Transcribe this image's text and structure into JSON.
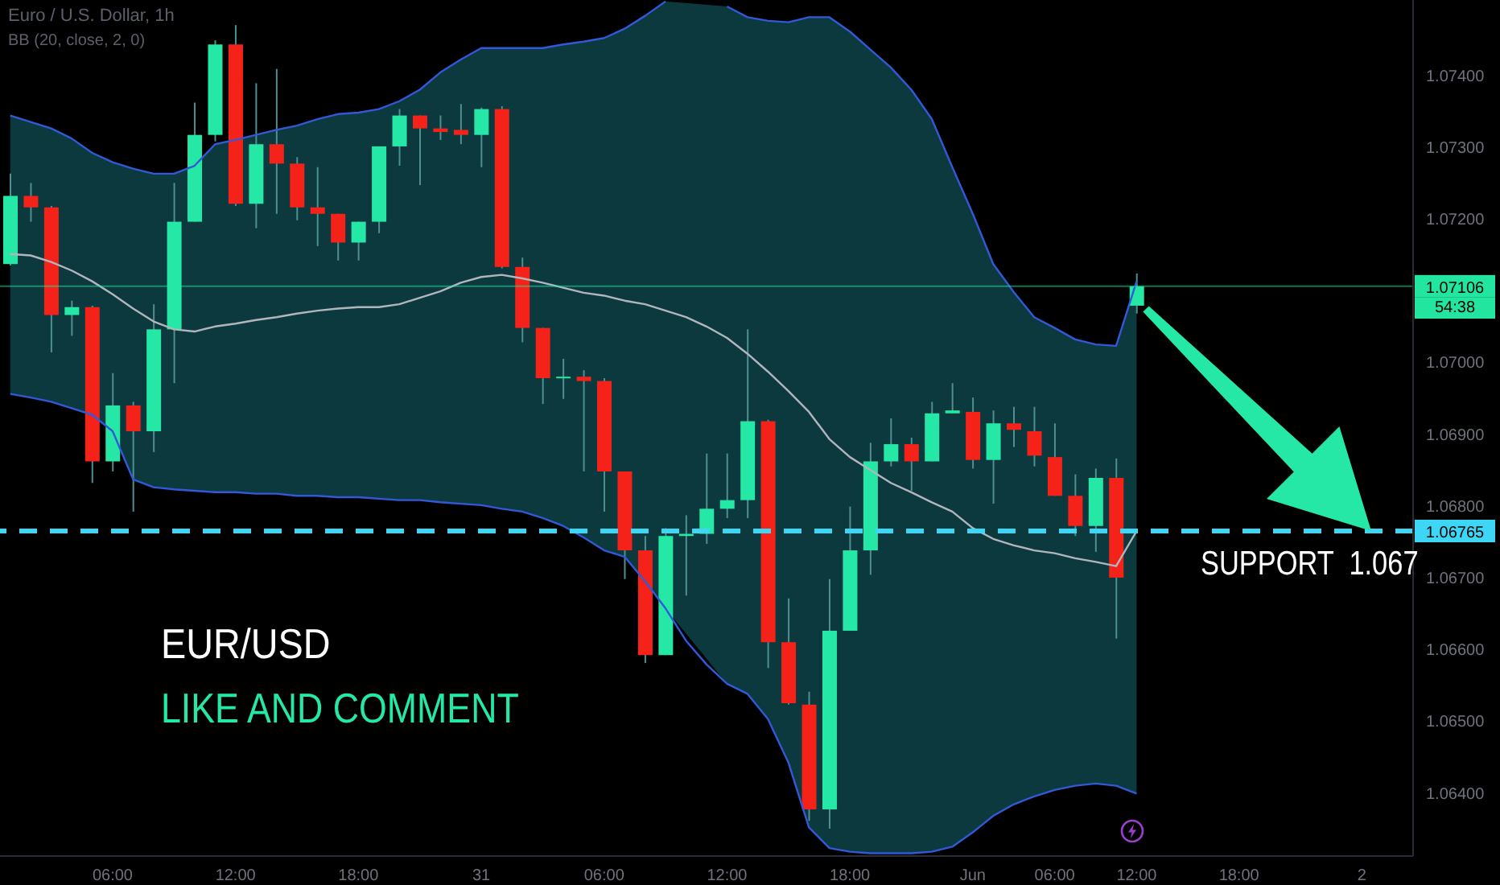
{
  "chart_data": {
    "type": "candlestick",
    "title": "Euro / U.S. Dollar, 1h",
    "subtitle": "BB (20, close, 2, 0)",
    "categories": [
      null,
      null,
      null,
      null,
      null,
      "06:00",
      null,
      null,
      null,
      null,
      null,
      "12:00",
      null,
      null,
      null,
      null,
      null,
      "18:00",
      null,
      null,
      null,
      null,
      null,
      "31",
      null,
      null,
      null,
      null,
      null,
      "06:00",
      null,
      null,
      null,
      null,
      null,
      "12:00",
      null,
      null,
      null,
      null,
      null,
      "18:00",
      null,
      null,
      null,
      null,
      null,
      "Jun",
      null,
      null,
      null,
      "06:00",
      null,
      null,
      null,
      "12:00",
      null,
      null,
      null,
      null,
      "18:00",
      null,
      null,
      null,
      null,
      null,
      "2",
      null,
      null
    ],
    "ohlc": [
      [
        1.07137,
        1.07263,
        1.07135,
        1.07232
      ],
      [
        1.07232,
        1.0725,
        1.07196,
        1.07216
      ],
      [
        1.07216,
        1.07218,
        1.07014,
        1.07066
      ],
      [
        1.07066,
        1.07086,
        1.07037,
        1.07077
      ],
      [
        1.07077,
        1.07079,
        1.06832,
        1.06862
      ],
      [
        1.06862,
        1.06985,
        1.06848,
        1.0694
      ],
      [
        1.0694,
        1.06945,
        1.06792,
        1.06904
      ],
      [
        1.06904,
        1.07081,
        1.06875,
        1.07046
      ],
      [
        1.07046,
        1.0725,
        1.06971,
        1.07196
      ],
      [
        1.07196,
        1.07362,
        1.07196,
        1.07317
      ],
      [
        1.07317,
        1.07449,
        1.07308,
        1.07443
      ],
      [
        1.07443,
        1.0747,
        1.07218,
        1.07221
      ],
      [
        1.07221,
        1.07389,
        1.07187,
        1.07304
      ],
      [
        1.07304,
        1.07409,
        1.07207,
        1.07277
      ],
      [
        1.07277,
        1.07286,
        1.07198,
        1.07216
      ],
      [
        1.07216,
        1.07272,
        1.07162,
        1.07207
      ],
      [
        1.07207,
        1.07207,
        1.07142,
        1.07167
      ],
      [
        1.07167,
        1.07196,
        1.07142,
        1.07196
      ],
      [
        1.07196,
        1.07301,
        1.0718,
        1.07301
      ],
      [
        1.07301,
        1.07353,
        1.07274,
        1.07344
      ],
      [
        1.07344,
        1.07344,
        1.07247,
        1.07326
      ],
      [
        1.07326,
        1.07344,
        1.0731,
        1.07321
      ],
      [
        1.07324,
        1.0736,
        1.07304,
        1.07317
      ],
      [
        1.07317,
        1.07355,
        1.07272,
        1.07353
      ],
      [
        1.07353,
        1.07357,
        1.07131,
        1.07133
      ],
      [
        1.07133,
        1.07146,
        1.07028,
        1.07048
      ],
      [
        1.07048,
        1.07048,
        1.06942,
        1.06978
      ],
      [
        1.06978,
        1.07005,
        1.06949,
        1.0698
      ],
      [
        1.0698,
        1.06989,
        1.06848,
        1.06974
      ],
      [
        1.06974,
        1.06978,
        1.06792,
        1.06848
      ],
      [
        1.06848,
        1.06848,
        1.06698,
        1.06738
      ],
      [
        1.06738,
        1.06758,
        1.06581,
        1.06592
      ],
      [
        1.06592,
        1.06769,
        1.06592,
        1.06758
      ],
      [
        1.06758,
        1.06787,
        1.06675,
        1.06761
      ],
      [
        1.06761,
        1.06873,
        1.06747,
        1.06796
      ],
      [
        1.06796,
        1.06873,
        1.06783,
        1.06808
      ],
      [
        1.06808,
        1.07046,
        1.06783,
        1.06918
      ],
      [
        1.06918,
        1.0692,
        1.06574,
        1.0661
      ],
      [
        1.0661,
        1.06671,
        1.06523,
        1.06525
      ],
      [
        1.06523,
        1.06541,
        1.06361,
        1.06377
      ],
      [
        1.06377,
        1.06698,
        1.0635,
        1.06626
      ],
      [
        1.06626,
        1.06799,
        1.06626,
        1.06738
      ],
      [
        1.06738,
        1.06888,
        1.06704,
        1.06862
      ],
      [
        1.06862,
        1.06922,
        1.06855,
        1.06886
      ],
      [
        1.06886,
        1.06895,
        1.06821,
        1.06862
      ],
      [
        1.06862,
        1.06945,
        1.06862,
        1.06929
      ],
      [
        1.06929,
        1.06971,
        1.06929,
        1.06933
      ],
      [
        1.06931,
        1.06951,
        1.06852,
        1.06864
      ],
      [
        1.06864,
        1.06933,
        1.06803,
        1.06915
      ],
      [
        1.06915,
        1.06938,
        1.06882,
        1.06906
      ],
      [
        1.06904,
        1.06938,
        1.06855,
        1.0687
      ],
      [
        1.06868,
        1.06915,
        1.06814,
        1.06814
      ],
      [
        1.06814,
        1.06844,
        1.06758,
        1.06772
      ],
      [
        1.06772,
        1.06852,
        1.06736,
        1.06839
      ],
      [
        1.06839,
        1.06866,
        1.06615,
        1.067
      ],
      [
        1.07079,
        1.07124,
        1.07068,
        1.07106
      ],
      null,
      null,
      null,
      null,
      null,
      null,
      null,
      null,
      null,
      null,
      null,
      null,
      null
    ],
    "series": [
      {
        "type": "line",
        "color": "#b2b5be",
        "values": [
          1.07151,
          1.07149,
          1.0714,
          1.07128,
          1.07113,
          1.07095,
          1.07075,
          1.07057,
          1.07046,
          1.07043,
          1.0705,
          1.07054,
          1.07059,
          1.07063,
          1.07068,
          1.07072,
          1.07075,
          1.07077,
          1.07077,
          1.07081,
          1.0709,
          1.07099,
          1.07111,
          1.07119,
          1.07122,
          1.07117,
          1.07111,
          1.07104,
          1.07097,
          1.07093,
          1.07086,
          1.07081,
          1.07072,
          1.07063,
          1.0705,
          1.07034,
          1.07012,
          1.06987,
          1.0696,
          1.06931,
          1.06893,
          1.06868,
          1.0685,
          1.06832,
          1.06819,
          1.06805,
          1.06792,
          1.06769,
          1.06754,
          1.06745,
          1.06738,
          1.06734,
          1.06727,
          1.06722,
          1.06716,
          1.06765,
          null,
          null,
          null,
          null,
          null,
          null,
          null,
          null,
          null,
          null,
          null,
          null,
          null
        ],
        "lower": [
          1.06956,
          1.06951,
          1.06945,
          1.06936,
          1.06927,
          1.06904,
          1.06837,
          1.06826,
          1.06823,
          1.06821,
          1.06819,
          1.06819,
          1.06817,
          1.06817,
          1.06814,
          1.06814,
          1.06812,
          1.06812,
          1.0681,
          1.06808,
          1.06808,
          1.06805,
          1.06803,
          1.06801,
          1.06796,
          1.06792,
          1.06783,
          1.06772,
          1.06756,
          1.06738,
          1.06729,
          1.06695,
          1.06657,
          null,
          null,
          1.06552,
          1.06538,
          1.06503,
          1.06442,
          1.06352,
          1.06323,
          1.06318,
          1.06316,
          1.06316,
          1.06316,
          1.06318,
          1.06325,
          1.06345,
          1.06368,
          1.06384,
          1.06395,
          1.06404,
          1.0641,
          1.06413,
          1.0641,
          1.06399,
          null,
          null,
          null,
          null,
          null,
          null,
          null,
          null,
          null,
          null,
          null,
          null,
          null
        ],
        "upper": [
          1.07344,
          1.07335,
          1.07326,
          1.07312,
          1.07292,
          1.07279,
          1.0727,
          1.07263,
          1.07263,
          1.07274,
          1.07304,
          1.0731,
          1.07317,
          1.07324,
          1.0733,
          1.07339,
          1.07346,
          1.07348,
          1.07353,
          1.07364,
          1.0738,
          1.07404,
          1.07422,
          1.07438,
          1.07438,
          1.07438,
          1.07438,
          1.07443,
          1.07447,
          1.07452,
          1.07465,
          1.07483,
          1.07503,
          null,
          null,
          1.07496,
          1.07481,
          1.07476,
          1.07474,
          1.07481,
          1.07481,
          1.07461,
          1.07436,
          1.07411,
          1.0738,
          1.07339,
          1.07272,
          1.07207,
          1.07137,
          1.07098,
          1.07063,
          1.07048,
          1.07032,
          1.07025,
          1.07023,
          1.07113,
          null,
          null,
          null,
          null,
          null,
          null,
          null,
          null,
          null,
          null,
          null,
          null,
          null
        ]
      },
      {
        "type": "line",
        "color": "#3159d8",
        "values": [
          1.07344,
          1.07335,
          1.07326,
          1.07312,
          1.07292,
          1.07279,
          1.0727,
          1.07263,
          1.07263,
          1.07274,
          1.07304,
          1.0731,
          1.07317,
          1.07324,
          1.0733,
          1.07339,
          1.07346,
          1.07348,
          1.07353,
          1.07364,
          1.0738,
          1.07404,
          1.07422,
          1.07438,
          1.07438,
          1.07438,
          1.07438,
          1.07443,
          1.07447,
          1.07452,
          1.07465,
          1.07483,
          1.07503,
          null,
          null,
          1.07496,
          1.07481,
          1.07476,
          1.07474,
          1.07481,
          1.07481,
          1.07461,
          1.07436,
          1.07411,
          1.0738,
          1.07339,
          1.07272,
          1.07207,
          1.07137,
          1.07098,
          1.07063,
          1.07048,
          1.07032,
          1.07025,
          1.07023,
          1.07113,
          null,
          null,
          null,
          null,
          null,
          null,
          null,
          null,
          null,
          null,
          null,
          null,
          null
        ]
      },
      {
        "type": "line",
        "color": "#3159d8",
        "values": [
          1.06956,
          1.06951,
          1.06945,
          1.06936,
          1.06927,
          1.06904,
          1.06837,
          1.06826,
          1.06823,
          1.06821,
          1.06819,
          1.06819,
          1.06817,
          1.06817,
          1.06814,
          1.06814,
          1.06812,
          1.06812,
          1.0681,
          1.06808,
          1.06808,
          1.06805,
          1.06803,
          1.06801,
          1.06796,
          1.06792,
          1.06783,
          1.06772,
          1.06756,
          1.06738,
          1.06729,
          1.06695,
          1.06657,
          1.06612,
          1.06579,
          1.06552,
          1.06538,
          1.06503,
          1.06442,
          1.06352,
          1.06323,
          1.06318,
          1.06316,
          1.06316,
          1.06316,
          1.06318,
          1.06325,
          1.06345,
          1.06368,
          1.06384,
          1.06395,
          1.06404,
          1.0641,
          1.06413,
          1.0641,
          1.06399,
          null,
          null,
          null,
          null,
          null,
          null,
          null,
          null,
          null,
          null,
          null,
          null,
          null
        ]
      }
    ],
    "ylim": [
      1.06312,
      1.07505
    ],
    "yticks": [
      {
        "value": 1.064,
        "label": "1.06400"
      },
      {
        "value": 1.065,
        "label": "1.06500"
      },
      {
        "value": 1.066,
        "label": "1.06600"
      },
      {
        "value": 1.067,
        "label": "1.06700"
      },
      {
        "value": 1.068,
        "label": "1.06800"
      },
      {
        "value": 1.069,
        "label": "1.06900"
      },
      {
        "value": 1.07,
        "label": "1.07000"
      },
      {
        "value": 1.072,
        "label": "1.07200"
      },
      {
        "value": 1.073,
        "label": "1.07300"
      },
      {
        "value": 1.074,
        "label": "1.07400"
      }
    ],
    "ref_lines": [
      {
        "axis": "y",
        "value": 1.07106,
        "label": "1.07106",
        "color": "#22e6a0",
        "line_style": "solid"
      },
      {
        "axis": "y",
        "value": 1.06765,
        "label": "1.06765",
        "color": "#3dd6f5",
        "line_style": "dashed"
      }
    ],
    "annotations": [
      "54:38",
      "SUPPORT  1.067",
      "EUR/USD",
      "LIKE AND COMMENT"
    ]
  }
}
